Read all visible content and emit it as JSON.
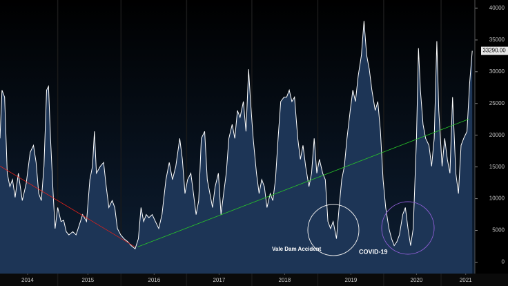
{
  "chart_data": {
    "type": "area",
    "x": [
      2014.08,
      2014.11,
      2014.15,
      2014.19,
      2014.23,
      2014.27,
      2014.31,
      2014.36,
      2014.42,
      2014.48,
      2014.54,
      2014.59,
      2014.63,
      2014.67,
      2014.71,
      2014.75,
      2014.79,
      2014.82,
      2014.85,
      2014.89,
      2014.92,
      2014.96,
      2015.01,
      2015.05,
      2015.09,
      2015.13,
      2015.19,
      2015.24,
      2015.29,
      2015.34,
      2015.4,
      2015.45,
      2015.49,
      2015.52,
      2015.55,
      2015.61,
      2015.66,
      2015.7,
      2015.74,
      2015.79,
      2015.83,
      2015.87,
      2015.92,
      2015.97,
      2016.03,
      2016.08,
      2016.14,
      2016.19,
      2016.23,
      2016.27,
      2016.31,
      2016.35,
      2016.4,
      2016.45,
      2016.5,
      2016.55,
      2016.61,
      2016.66,
      2016.71,
      2016.76,
      2016.82,
      2016.86,
      2016.9,
      2016.94,
      2016.99,
      2017.03,
      2017.07,
      2017.11,
      2017.15,
      2017.2,
      2017.24,
      2017.28,
      2017.32,
      2017.36,
      2017.41,
      2017.45,
      2017.49,
      2017.53,
      2017.57,
      2017.62,
      2017.66,
      2017.7,
      2017.74,
      2017.79,
      2017.83,
      2017.87,
      2017.9,
      2017.94,
      2017.99,
      2018.03,
      2018.07,
      2018.11,
      2018.15,
      2018.2,
      2018.24,
      2018.28,
      2018.32,
      2018.36,
      2018.41,
      2018.45,
      2018.49,
      2018.53,
      2018.57,
      2018.62,
      2018.66,
      2018.7,
      2018.74,
      2018.79,
      2018.83,
      2018.87,
      2018.91,
      2018.95,
      2019.0,
      2019.04,
      2019.08,
      2019.12,
      2019.16,
      2019.21,
      2019.25,
      2019.29,
      2019.33,
      2019.37,
      2019.42,
      2019.46,
      2019.5,
      2019.54,
      2019.59,
      2019.63,
      2019.67,
      2019.71,
      2019.75,
      2019.8,
      2019.84,
      2019.88,
      2019.92,
      2019.96,
      2020.01,
      2020.05,
      2020.09,
      2020.13,
      2020.17,
      2020.22,
      2020.26,
      2020.3,
      2020.34,
      2020.38,
      2020.43,
      2020.46,
      2020.49,
      2020.53,
      2020.57,
      2020.62,
      2020.66,
      2020.7,
      2020.74,
      2020.77,
      2020.82,
      2020.86,
      2020.9,
      2020.94,
      2020.98,
      2021.03,
      2021.07,
      2021.11,
      2021.15,
      2021.2,
      2021.24,
      2021.28
    ],
    "values": [
      19500,
      27100,
      26000,
      14000,
      11900,
      13000,
      10200,
      14000,
      9700,
      12400,
      17300,
      18400,
      15700,
      10800,
      9700,
      15100,
      27100,
      27700,
      19500,
      10800,
      5300,
      8600,
      6400,
      6600,
      4800,
      4300,
      4800,
      4300,
      5900,
      7500,
      6400,
      13000,
      15100,
      20600,
      14000,
      15100,
      15700,
      11900,
      8600,
      9700,
      8600,
      5300,
      4300,
      3700,
      3200,
      2600,
      2100,
      3700,
      8600,
      6400,
      7500,
      7000,
      7500,
      6400,
      5300,
      7500,
      13000,
      15700,
      13000,
      15100,
      19500,
      16200,
      10800,
      13000,
      14000,
      10800,
      7500,
      9700,
      19500,
      20600,
      13000,
      10800,
      8600,
      11900,
      14000,
      7500,
      10800,
      14000,
      19500,
      21700,
      19500,
      23900,
      22800,
      25300,
      20600,
      30400,
      25300,
      19500,
      14000,
      10800,
      13000,
      11900,
      8600,
      10800,
      9700,
      13000,
      19500,
      25300,
      26000,
      26000,
      27100,
      25300,
      26000,
      19500,
      16200,
      18400,
      15100,
      11900,
      14000,
      19500,
      14000,
      16200,
      14000,
      13000,
      6400,
      5300,
      6400,
      3700,
      8600,
      13000,
      15100,
      19500,
      23900,
      27100,
      25300,
      29300,
      32600,
      38000,
      32600,
      30400,
      27100,
      23900,
      25300,
      20600,
      13000,
      8600,
      5300,
      3700,
      2600,
      3200,
      4300,
      7500,
      8600,
      5300,
      2600,
      5300,
      19500,
      33700,
      27100,
      21700,
      19500,
      18400,
      15100,
      19500,
      34800,
      23900,
      15100,
      19500,
      16200,
      14000,
      26000,
      14000,
      10800,
      18400,
      19500,
      20600,
      28200,
      33290
    ],
    "last_label": {
      "value": 33290,
      "label": "33290.00"
    },
    "trendlines": [
      {
        "color": "#e0201a",
        "x": [
          2014.08,
          2016.14
        ],
        "values": [
          15140,
          2400
        ]
      },
      {
        "color": "#28c828",
        "x": [
          2016.18,
          2021.23
        ],
        "values": [
          2400,
          22550
        ]
      }
    ],
    "annotations": [
      "Vale Dam Accident",
      "COVID-19"
    ],
    "xlim": [
      2014.08,
      2021.32
    ],
    "xticks": [
      {
        "value": 2014.5,
        "label": "2014"
      },
      {
        "value": 2015.42,
        "label": "2015"
      },
      {
        "value": 2016.43,
        "label": "2016"
      },
      {
        "value": 2017.42,
        "label": "2017"
      },
      {
        "value": 2018.42,
        "label": "2018"
      },
      {
        "value": 2019.43,
        "label": "2019"
      },
      {
        "value": 2020.43,
        "label": "2020"
      },
      {
        "value": 2021.18,
        "label": "2021"
      }
    ],
    "ylim": [
      -1800,
      41300
    ],
    "yticks": [
      0,
      5000,
      10000,
      15000,
      20000,
      25000,
      30000,
      35000,
      40000
    ],
    "color": "#ffffff",
    "fill": "#1d3556"
  }
}
